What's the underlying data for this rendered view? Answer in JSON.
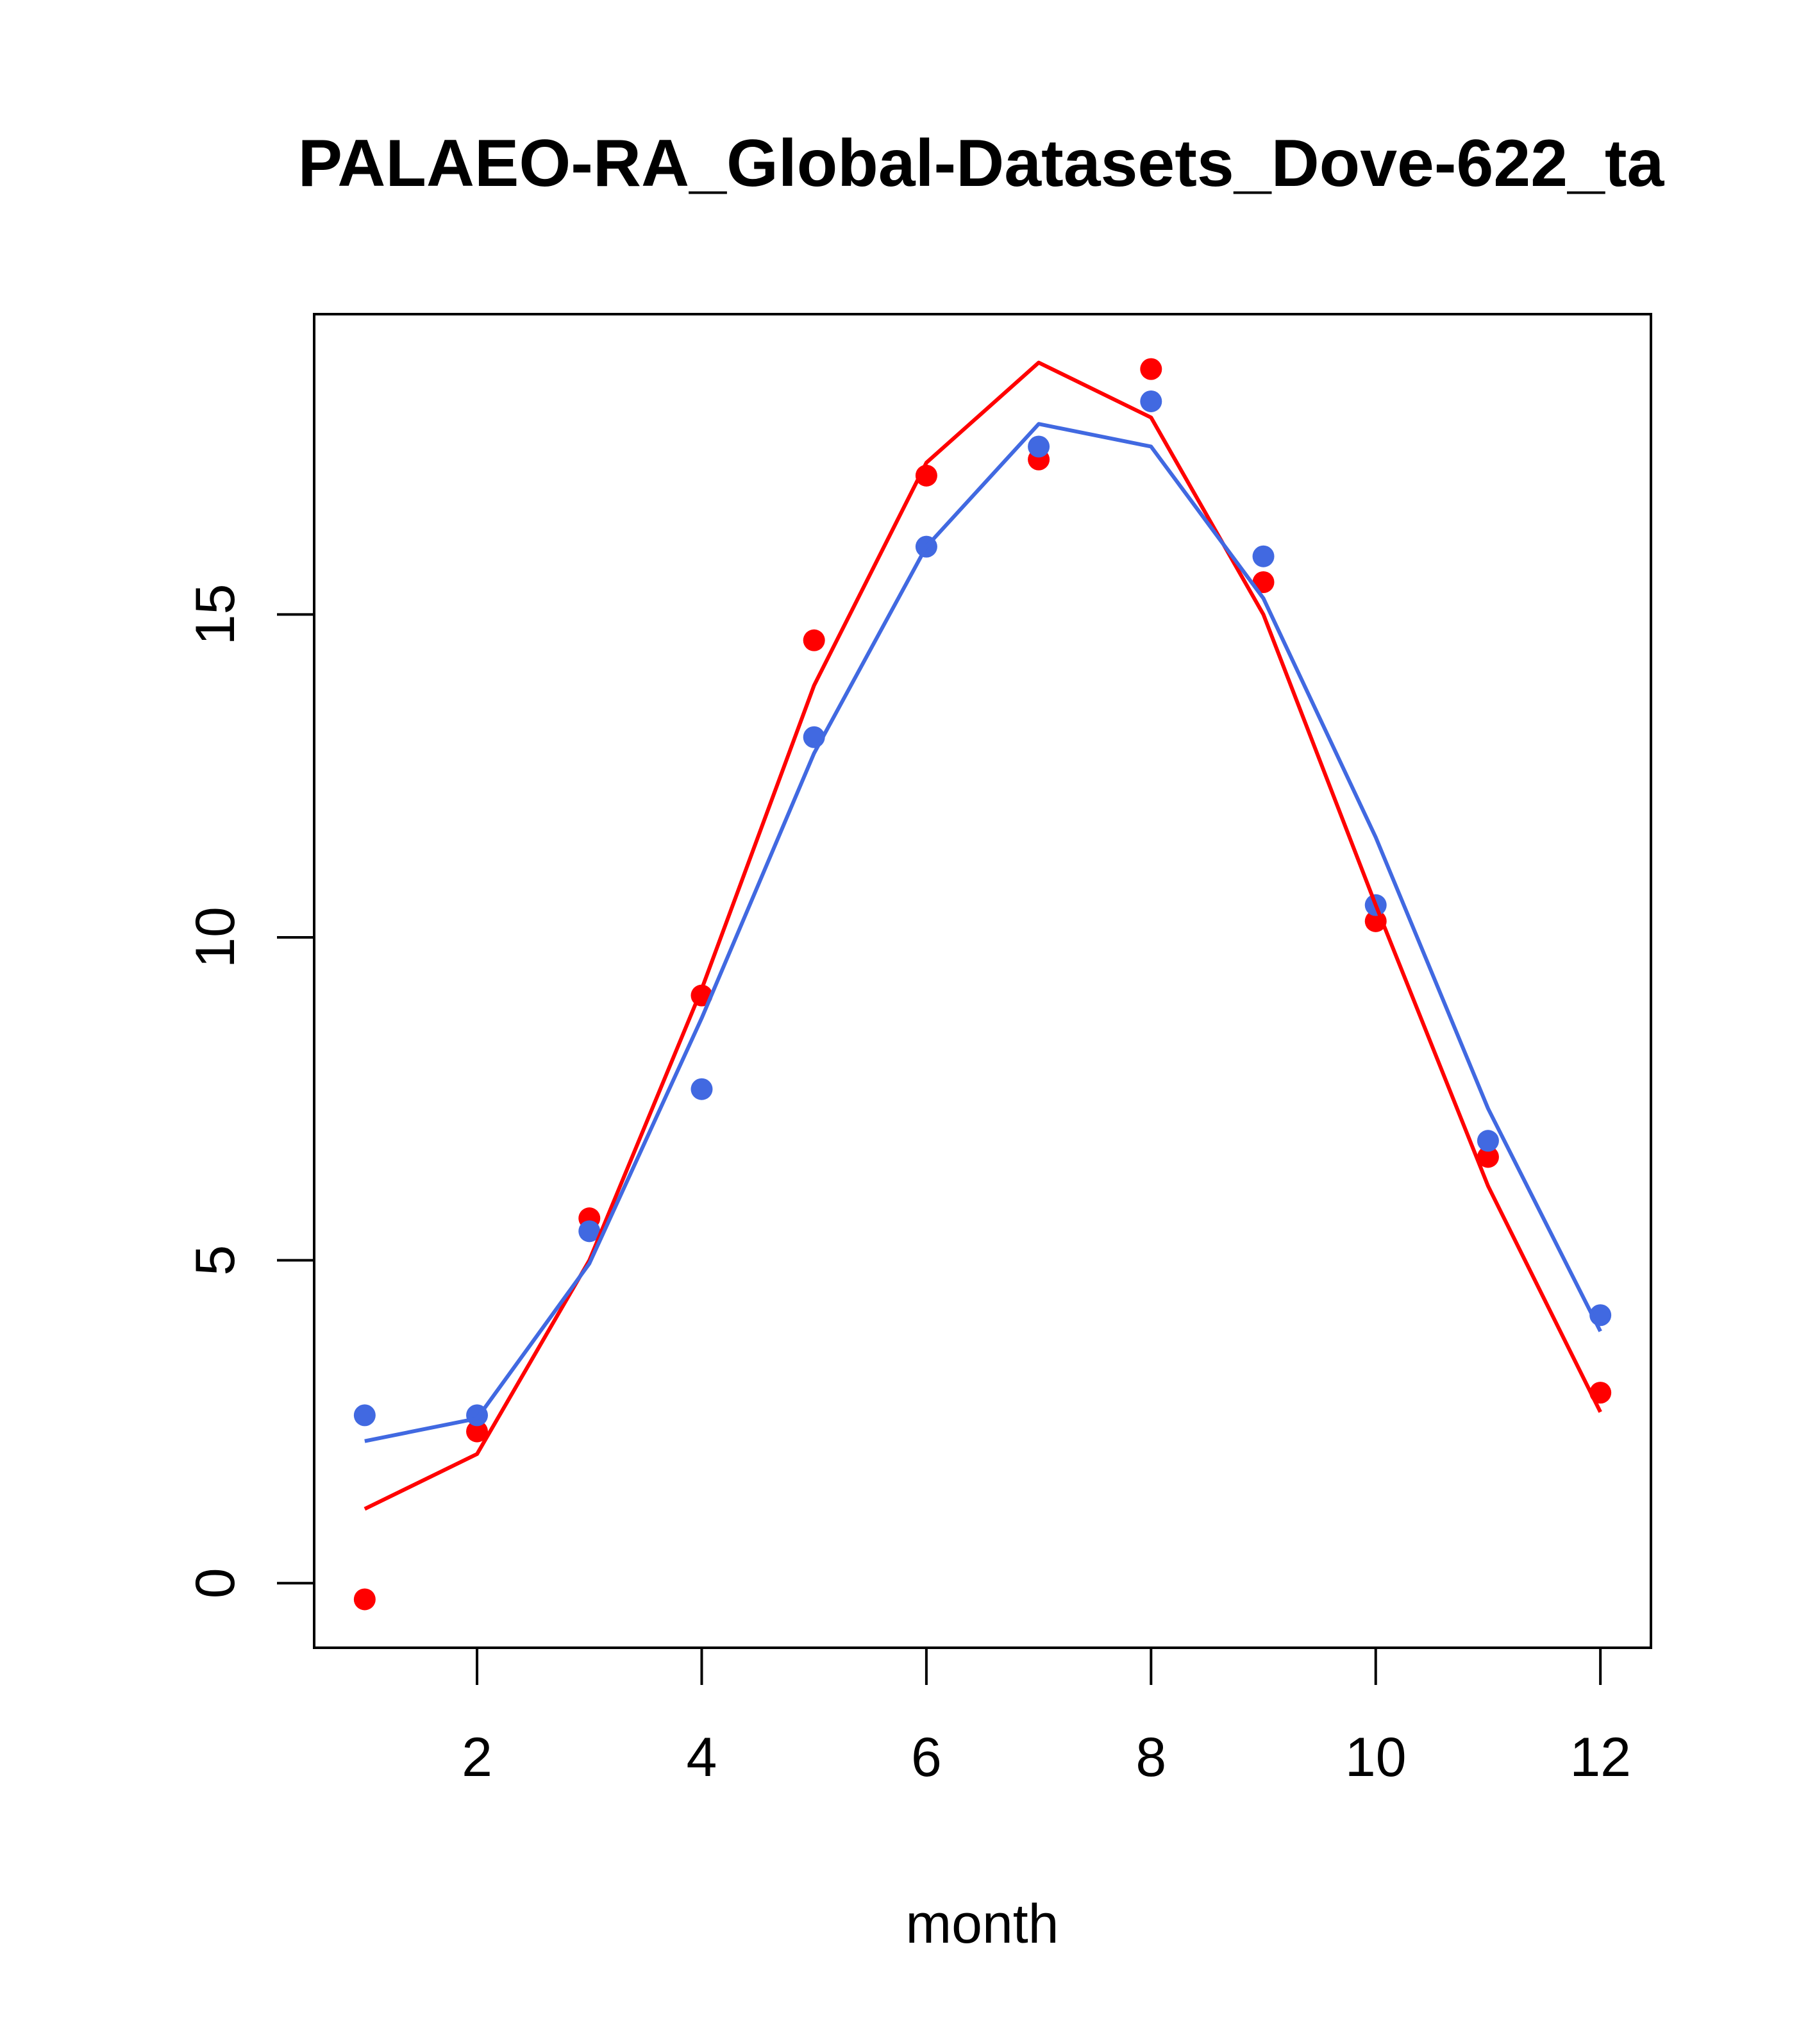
{
  "chart_data": {
    "type": "line",
    "title": "PALAEO-RA_Global-Datasets_Dove-622_ta",
    "xlabel": "month",
    "ylabel": "",
    "xlim": [
      0.55,
      12.45
    ],
    "ylim": [
      -1.0,
      19.65
    ],
    "xticks": [
      2,
      4,
      6,
      8,
      10,
      12
    ],
    "yticks": [
      0,
      5,
      10,
      15
    ],
    "grid": false,
    "legend": null,
    "x": [
      1,
      2,
      3,
      4,
      5,
      6,
      7,
      8,
      9,
      10,
      11,
      12
    ],
    "series": [
      {
        "name": "red-points",
        "kind": "points",
        "color": "#ff0000",
        "values": [
          -0.25,
          2.35,
          5.65,
          9.1,
          14.6,
          17.15,
          17.4,
          18.8,
          15.5,
          10.25,
          6.6,
          2.95
        ]
      },
      {
        "name": "blue-points",
        "kind": "points",
        "color": "#4169e1",
        "values": [
          2.6,
          2.6,
          5.45,
          7.65,
          13.1,
          16.05,
          17.6,
          18.3,
          15.9,
          10.5,
          6.85,
          4.15
        ]
      },
      {
        "name": "red-line",
        "kind": "line",
        "color": "#ff0000",
        "values": [
          1.15,
          2.0,
          5.0,
          9.2,
          13.9,
          17.35,
          18.9,
          18.05,
          15.0,
          10.5,
          6.15,
          2.65
        ]
      },
      {
        "name": "blue-line",
        "kind": "line",
        "color": "#4169e1",
        "values": [
          2.2,
          2.55,
          4.95,
          8.75,
          12.85,
          16.05,
          17.95,
          17.6,
          15.25,
          11.55,
          7.35,
          3.9
        ]
      }
    ]
  }
}
